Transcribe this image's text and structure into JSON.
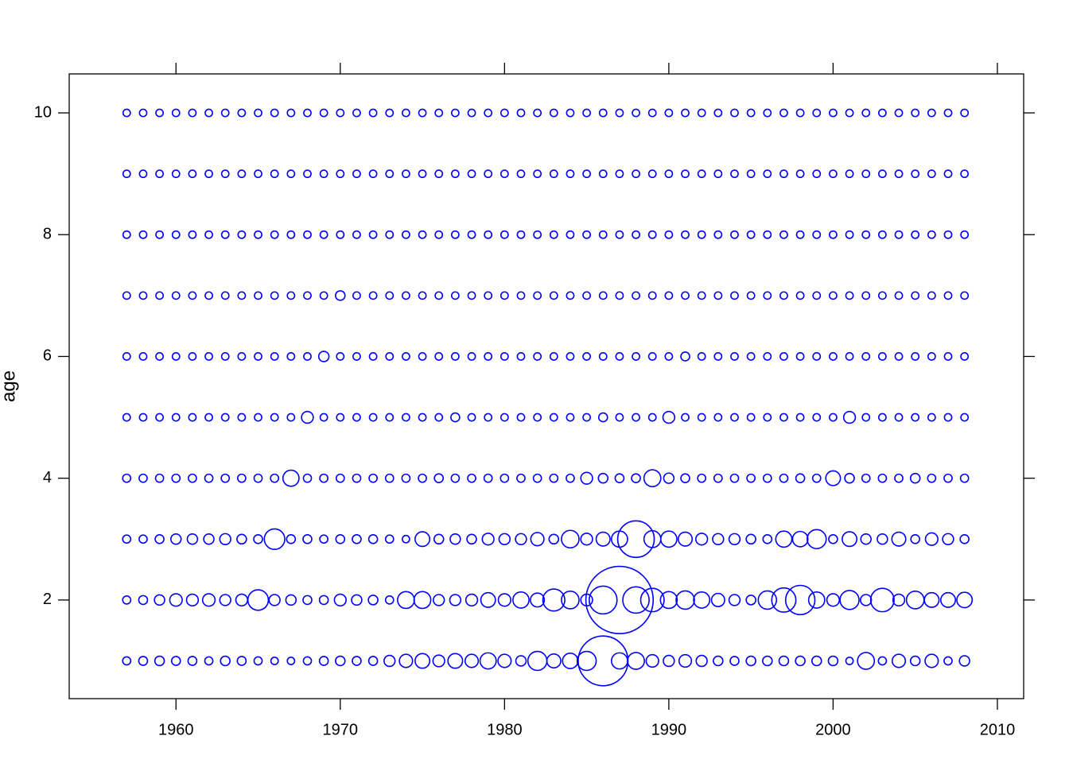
{
  "chart_data": {
    "type": "bubble",
    "y_label": "age",
    "color": "#0000ff",
    "xlim": [
      1953.5,
      2011.6
    ],
    "ylim": [
      0.38,
      10.64
    ],
    "xticks": [
      1960,
      1970,
      1980,
      1990,
      2000,
      2010
    ],
    "yticks": [
      2,
      4,
      6,
      8,
      10
    ],
    "x": [
      1957,
      1958,
      1959,
      1960,
      1961,
      1962,
      1963,
      1964,
      1965,
      1966,
      1967,
      1968,
      1969,
      1970,
      1971,
      1972,
      1973,
      1974,
      1975,
      1976,
      1977,
      1978,
      1979,
      1980,
      1981,
      1982,
      1983,
      1984,
      1985,
      1986,
      1987,
      1988,
      1989,
      1990,
      1991,
      1992,
      1993,
      1994,
      1995,
      1996,
      1997,
      1998,
      1999,
      2000,
      2001,
      2002,
      2003,
      2004,
      2005,
      2006,
      2007,
      2008
    ],
    "ages": [
      1,
      2,
      3,
      4,
      5,
      6,
      7,
      8,
      9,
      10
    ],
    "sizes": [
      [
        1.1,
        1.2,
        1.3,
        1.2,
        1.2,
        1.1,
        1.3,
        1.2,
        1.1,
        1,
        1,
        1.1,
        1.2,
        1.3,
        1.2,
        1.2,
        1.5,
        1.8,
        2,
        1.6,
        2,
        1.8,
        2.2,
        1.8,
        1.4,
        2.6,
        1.9,
        2.1,
        2.6,
        6.8,
        2.2,
        2.3,
        1.7,
        1.5,
        1.7,
        1.5,
        1.3,
        1.2,
        1.3,
        1.3,
        1.3,
        1.3,
        1.3,
        1.3,
        1,
        2.3,
        1.1,
        1.8,
        1.3,
        1.8,
        1.1,
        1.4
      ],
      [
        1.1,
        1.2,
        1.4,
        1.7,
        1.6,
        1.7,
        1.5,
        1.6,
        2.8,
        1.5,
        1.4,
        1.2,
        1.2,
        1.6,
        1.4,
        1.3,
        1.1,
        2.3,
        2.3,
        1.5,
        1.5,
        1.6,
        2,
        1.7,
        2.2,
        1.9,
        3,
        2.4,
        1.6,
        3.8,
        9.2,
        3.6,
        3.2,
        2.3,
        2.5,
        2.2,
        1.8,
        1.5,
        1.3,
        2.5,
        3.3,
        4,
        2.2,
        1.7,
        2.6,
        1.5,
        3.2,
        1.6,
        2.4,
        2,
        2,
        2.1
      ],
      [
        1.1,
        1.1,
        1.2,
        1.4,
        1.4,
        1.4,
        1.5,
        1.3,
        1.2,
        2.8,
        1.2,
        1.2,
        1.1,
        1.2,
        1.2,
        1.2,
        1.1,
        1,
        2,
        1.3,
        1.4,
        1.3,
        1.6,
        1.5,
        1.5,
        1.8,
        1.3,
        2.4,
        1.6,
        1.9,
        2.2,
        5,
        2.3,
        2.2,
        1.9,
        1.6,
        1.5,
        1.5,
        1.3,
        1.2,
        2.2,
        2.1,
        2.6,
        1.2,
        2,
        1.4,
        1.4,
        1.9,
        1.2,
        1.7,
        1.5,
        1.2
      ],
      [
        1.1,
        1.1,
        1.1,
        1.1,
        1.1,
        1.1,
        1.1,
        1.1,
        1.1,
        1.1,
        2.2,
        1.1,
        1.1,
        1.1,
        1.1,
        1.1,
        1.1,
        1.1,
        1.1,
        1.2,
        1.1,
        1.1,
        1.1,
        1.1,
        1.1,
        1.1,
        1.1,
        1.1,
        1.6,
        1.3,
        1.2,
        1.2,
        2.3,
        1.4,
        1.2,
        1.1,
        1.1,
        1.1,
        1.1,
        1.1,
        1.1,
        1.2,
        1.1,
        2,
        1.3,
        1.1,
        1.1,
        1.1,
        1.3,
        1.1,
        1.1,
        1.1
      ],
      [
        1,
        1,
        1,
        1,
        1,
        1,
        1,
        1,
        1,
        1,
        1,
        1.6,
        1,
        1,
        1,
        1,
        1,
        1,
        1,
        1,
        1.2,
        1,
        1,
        1,
        1,
        1,
        1,
        1,
        1,
        1.2,
        1,
        1,
        1,
        1.6,
        1,
        1,
        1,
        1,
        1,
        1,
        1,
        1,
        1,
        1,
        1.6,
        1,
        1,
        1,
        1,
        1,
        1,
        1
      ],
      [
        1,
        1,
        1,
        1,
        1,
        1,
        1,
        1,
        1,
        1,
        1,
        1,
        1.4,
        1,
        1,
        1,
        1,
        1,
        1,
        1,
        1,
        1,
        1,
        1,
        1,
        1,
        1,
        1,
        1,
        1,
        1,
        1,
        1,
        1,
        1.2,
        1,
        1,
        1,
        1,
        1,
        1,
        1,
        1,
        1,
        1,
        1,
        1,
        1,
        1,
        1,
        1,
        1
      ],
      [
        1,
        1,
        1,
        1,
        1,
        1,
        1,
        1,
        1,
        1,
        1,
        1,
        1,
        1.3,
        1,
        1,
        1,
        1,
        1,
        1,
        1,
        1,
        1,
        1,
        1,
        1,
        1,
        1,
        1,
        1,
        1,
        1,
        1,
        1,
        1,
        1,
        1,
        1,
        1,
        1,
        1,
        1,
        1,
        1,
        1,
        1,
        1,
        1,
        1,
        1,
        1,
        1
      ],
      [
        1,
        1,
        1,
        1,
        1,
        1,
        1,
        1,
        1,
        1,
        1,
        1,
        1,
        1,
        1,
        1,
        1,
        1,
        1,
        1,
        1,
        1,
        1,
        1,
        1,
        1,
        1,
        1,
        1,
        1,
        1,
        1,
        1,
        1,
        1,
        1,
        1,
        1,
        1,
        1,
        1,
        1,
        1,
        1,
        1,
        1,
        1,
        1,
        1,
        1,
        1,
        1
      ],
      [
        1,
        1,
        1,
        1,
        1,
        1,
        1,
        1,
        1,
        1,
        1,
        1,
        1,
        1,
        1,
        1,
        1,
        1,
        1,
        1,
        1,
        1,
        1,
        1,
        1,
        1,
        1,
        1,
        1,
        1,
        1,
        1,
        1,
        1,
        1,
        1,
        1,
        1,
        1,
        1,
        1,
        1,
        1,
        1,
        1,
        1,
        1,
        1,
        1,
        1,
        1,
        1
      ],
      [
        1,
        1,
        1,
        1,
        1,
        1,
        1,
        1,
        1,
        1,
        1,
        1,
        1,
        1,
        1,
        1,
        1,
        1,
        1,
        1,
        1,
        1,
        1,
        1,
        1,
        1,
        1,
        1,
        1,
        1,
        1,
        1,
        1,
        1,
        1,
        1,
        1,
        1,
        1,
        1,
        1,
        1,
        1,
        1,
        1,
        1,
        1,
        1,
        1,
        1,
        1,
        1
      ]
    ]
  }
}
